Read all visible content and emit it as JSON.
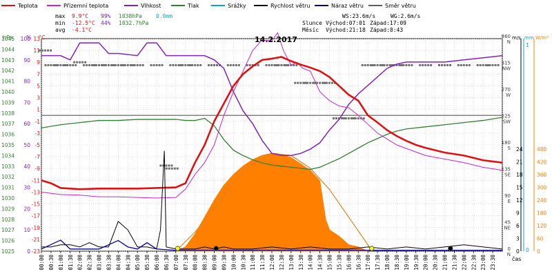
{
  "chart_data": {
    "type": "line",
    "title": "14.2.2017",
    "xlabel": "čas",
    "legend": [
      {
        "name": "Teplota",
        "color": "#e01010"
      },
      {
        "name": "Přízemní teplota",
        "color": "#d020d0"
      },
      {
        "name": "Vlhkost",
        "color": "#8020c0"
      },
      {
        "name": "Tlak",
        "color": "#308030"
      },
      {
        "name": "Srážky",
        "color": "#10a0d0"
      },
      {
        "name": "Rychlost větru",
        "color": "#000000"
      },
      {
        "name": "Náraz větru",
        "color": "#000080"
      },
      {
        "name": "Směr větru",
        "color": "#606060"
      }
    ],
    "stats": {
      "max_label": "max",
      "max_temp": "9.9°C",
      "max_hum": "99%",
      "max_press": "1038hPa",
      "rain": "0.0mm",
      "min_label": "min",
      "min_temp": "-12.5°C",
      "min_hum": "44%",
      "min_press": "1032.7hPa",
      "avg_label": "avg",
      "avg_temp": "-4.1°C",
      "ws": "WS:23.6m/s",
      "wg": "WG:2.6m/s",
      "sun": "Slunce",
      "sun_rise": "Východ:07:01",
      "sun_set": "Západ:17:09",
      "moon": "Měsíc",
      "moon_rise": "Východ:21:18",
      "moon_set": "Západ:8:43"
    },
    "axes": {
      "hpa_title": "hPa",
      "pct_title": "%",
      "temp_title": "°C",
      "hpa_ticks": [
        "1025",
        "1026",
        "1027",
        "1028",
        "1029",
        "1030",
        "1031",
        "1032",
        "1033",
        "1034",
        "1035",
        "1036",
        "1037",
        "1038",
        "1039",
        "1040",
        "1041",
        "1042",
        "1043",
        "1044",
        "1045"
      ],
      "pct_ticks": [
        "0",
        "10",
        "20",
        "30",
        "40",
        "50",
        "60",
        "70",
        "80",
        "90",
        "100"
      ],
      "temp_ticks": [
        "-23",
        "-21",
        "-19",
        "-17",
        "-15",
        "-13",
        "-11",
        "-9",
        "-7",
        "-5",
        "-3",
        "-1",
        "1",
        "3",
        "5",
        "7",
        "9",
        "11",
        "13"
      ],
      "dir_title": "°",
      "dir_ticks": [
        {
          "v": "0",
          "l": "N"
        },
        {
          "v": "45",
          "l": "NE"
        },
        {
          "v": "90",
          "l": "E"
        },
        {
          "v": "135",
          "l": "SE"
        },
        {
          "v": "180",
          "l": "S"
        },
        {
          "v": "225",
          "l": "SW"
        },
        {
          "v": "270",
          "l": "W"
        },
        {
          "v": "315",
          "l": "NW"
        },
        {
          "v": "360",
          "l": "N"
        }
      ],
      "ms_title": "m/s",
      "ms_ticks": [
        "0",
        "3",
        "6",
        "9",
        "12",
        "15",
        "18",
        "21",
        "24"
      ],
      "mm_title": "mm",
      "mm_ticks": [
        "0",
        "1"
      ],
      "wm_title": "W/m²",
      "wm_ticks": [
        "0",
        "60",
        "120",
        "180",
        "240",
        "300",
        "360",
        "420",
        "480"
      ]
    },
    "x_ticks": [
      "00:00",
      "00:30",
      "01:00",
      "01:30",
      "02:00",
      "02:30",
      "03:00",
      "03:30",
      "04:00",
      "04:30",
      "05:00",
      "05:30",
      "06:00",
      "06:30",
      "07:00",
      "07:30",
      "08:00",
      "08:30",
      "09:00",
      "09:30",
      "10:00",
      "10:30",
      "11:00",
      "11:30",
      "12:00",
      "12:30",
      "13:00",
      "13:30",
      "14:00",
      "14:30",
      "15:00",
      "15:30",
      "16:00",
      "16:30",
      "17:00",
      "17:30",
      "18:00",
      "18:30",
      "19:00",
      "19:30",
      "20:00",
      "20:30",
      "21:00",
      "21:30",
      "22:00",
      "22:30",
      "23:00",
      "23:30"
    ],
    "temperature": [
      [
        0,
        -11
      ],
      [
        0.5,
        -11.5
      ],
      [
        1,
        -12.3
      ],
      [
        2,
        -12.5
      ],
      [
        3,
        -12.4
      ],
      [
        4,
        -12.4
      ],
      [
        5,
        -12.4
      ],
      [
        6,
        -12.3
      ],
      [
        7,
        -12.2
      ],
      [
        7.5,
        -11.5
      ],
      [
        8,
        -8
      ],
      [
        8.5,
        -5
      ],
      [
        9,
        -1
      ],
      [
        9.5,
        2
      ],
      [
        10,
        5
      ],
      [
        10.5,
        7
      ],
      [
        11,
        8.3
      ],
      [
        11.5,
        9.4
      ],
      [
        12,
        9.6
      ],
      [
        12.5,
        9.9
      ],
      [
        13,
        9.2
      ],
      [
        13.5,
        8.6
      ],
      [
        14,
        8.1
      ],
      [
        14.5,
        7.5
      ],
      [
        15,
        6.5
      ],
      [
        15.5,
        5
      ],
      [
        16,
        3.5
      ],
      [
        16.5,
        2.5
      ],
      [
        17,
        0
      ],
      [
        17.5,
        -1.2
      ],
      [
        18,
        -2.5
      ],
      [
        18.5,
        -3.5
      ],
      [
        19,
        -4.3
      ],
      [
        19.5,
        -5
      ],
      [
        20,
        -5.5
      ],
      [
        21,
        -6.3
      ],
      [
        22,
        -6.8
      ],
      [
        23,
        -7.6
      ],
      [
        24,
        -8
      ]
    ],
    "ground_temperature": [
      [
        0,
        -13
      ],
      [
        1,
        -13.4
      ],
      [
        2,
        -13.5
      ],
      [
        3,
        -13.8
      ],
      [
        4,
        -13.8
      ],
      [
        5,
        -13.9
      ],
      [
        6,
        -14
      ],
      [
        7,
        -13.9
      ],
      [
        7.5,
        -12.5
      ],
      [
        8,
        -10
      ],
      [
        8.5,
        -8
      ],
      [
        9,
        -5
      ],
      [
        9.5,
        0
      ],
      [
        10,
        4
      ],
      [
        10.5,
        7.5
      ],
      [
        11,
        11
      ],
      [
        11.5,
        12.8
      ],
      [
        12,
        12.6
      ],
      [
        12.3,
        14
      ],
      [
        12.6,
        11
      ],
      [
        13,
        8.5
      ],
      [
        13.3,
        9
      ],
      [
        13.6,
        8
      ],
      [
        14,
        7.5
      ],
      [
        14.5,
        4
      ],
      [
        15,
        2.5
      ],
      [
        15.5,
        1.6
      ],
      [
        16,
        1.3
      ],
      [
        16.5,
        0
      ],
      [
        17,
        -1.5
      ],
      [
        17.5,
        -3
      ],
      [
        18,
        -4
      ],
      [
        18.5,
        -5
      ],
      [
        19,
        -5.6
      ],
      [
        19.5,
        -6.2
      ],
      [
        20,
        -6.8
      ],
      [
        21,
        -7.4
      ],
      [
        22,
        -8
      ],
      [
        23,
        -8.8
      ],
      [
        24,
        -9.3
      ]
    ],
    "humidity": [
      [
        0,
        92
      ],
      [
        0.5,
        92
      ],
      [
        1,
        92
      ],
      [
        1.5,
        90
      ],
      [
        2,
        98
      ],
      [
        3,
        98
      ],
      [
        3.5,
        93
      ],
      [
        4,
        93
      ],
      [
        5,
        92
      ],
      [
        5.5,
        98
      ],
      [
        6,
        98
      ],
      [
        6.5,
        92
      ],
      [
        7,
        92
      ],
      [
        8,
        92
      ],
      [
        8.5,
        92
      ],
      [
        9,
        90
      ],
      [
        9.5,
        86
      ],
      [
        10,
        75
      ],
      [
        10.5,
        66
      ],
      [
        11,
        60
      ],
      [
        11.5,
        52
      ],
      [
        12,
        46
      ],
      [
        12.5,
        45
      ],
      [
        13,
        45
      ],
      [
        13.5,
        46
      ],
      [
        14,
        48
      ],
      [
        14.5,
        51
      ],
      [
        15,
        57
      ],
      [
        15.5,
        62
      ],
      [
        16,
        69
      ],
      [
        16.5,
        74
      ],
      [
        17,
        78
      ],
      [
        17.5,
        82
      ],
      [
        18,
        86
      ],
      [
        18.5,
        88
      ],
      [
        19,
        89
      ],
      [
        20,
        89
      ],
      [
        21,
        89
      ],
      [
        22,
        90
      ],
      [
        23,
        91
      ],
      [
        24,
        92
      ]
    ],
    "pressure": [
      [
        0,
        1036.6
      ],
      [
        1,
        1036.9
      ],
      [
        2,
        1037.1
      ],
      [
        3,
        1037.3
      ],
      [
        4,
        1037.3
      ],
      [
        5,
        1037.4
      ],
      [
        6,
        1037.4
      ],
      [
        7,
        1037.4
      ],
      [
        7.5,
        1037.3
      ],
      [
        8,
        1037.3
      ],
      [
        8.5,
        1037.5
      ],
      [
        9,
        1036.8
      ],
      [
        9.5,
        1035.5
      ],
      [
        10,
        1034.5
      ],
      [
        10.5,
        1034
      ],
      [
        11,
        1033.6
      ],
      [
        11.5,
        1033.3
      ],
      [
        12,
        1033.1
      ],
      [
        12.5,
        1033
      ],
      [
        13,
        1032.9
      ],
      [
        13.5,
        1032.8
      ],
      [
        14,
        1032.7
      ],
      [
        14.5,
        1032.9
      ],
      [
        15,
        1033.3
      ],
      [
        15.5,
        1033.7
      ],
      [
        16,
        1034.2
      ],
      [
        16.5,
        1034.7
      ],
      [
        17,
        1035.2
      ],
      [
        17.5,
        1035.6
      ],
      [
        18,
        1036
      ],
      [
        18.5,
        1036.3
      ],
      [
        19,
        1036.5
      ],
      [
        20,
        1036.7
      ],
      [
        21,
        1036.9
      ],
      [
        22,
        1037.1
      ],
      [
        23,
        1037.3
      ],
      [
        24,
        1037.6
      ]
    ],
    "wind_direction": [
      [
        0.2,
        340
      ],
      [
        0.5,
        315
      ],
      [
        1,
        315
      ],
      [
        1.5,
        315
      ],
      [
        2,
        320
      ],
      [
        2.5,
        315
      ],
      [
        3,
        315
      ],
      [
        3.5,
        315
      ],
      [
        4,
        315
      ],
      [
        4.5,
        315
      ],
      [
        5,
        315
      ],
      [
        6,
        315
      ],
      [
        6.5,
        145
      ],
      [
        6.8,
        140
      ],
      [
        7,
        315
      ],
      [
        7.5,
        315
      ],
      [
        8,
        315
      ],
      [
        9,
        315
      ],
      [
        10,
        315
      ],
      [
        11,
        315
      ],
      [
        12,
        315
      ],
      [
        12.5,
        315
      ],
      [
        13,
        315
      ],
      [
        13.5,
        285
      ],
      [
        14,
        285
      ],
      [
        14.5,
        285
      ],
      [
        15,
        285
      ],
      [
        15.5,
        225
      ],
      [
        16,
        225
      ],
      [
        16.5,
        225
      ],
      [
        17,
        315
      ],
      [
        17.5,
        315
      ],
      [
        18,
        315
      ],
      [
        18.5,
        315
      ],
      [
        19,
        315
      ],
      [
        20,
        315
      ],
      [
        21,
        315
      ],
      [
        22,
        315
      ],
      [
        23,
        315
      ],
      [
        23.5,
        315
      ]
    ],
    "wind_speed": [
      [
        0,
        1
      ],
      [
        0.5,
        1
      ],
      [
        1,
        1.5
      ],
      [
        1.5,
        1.5
      ],
      [
        2,
        1
      ],
      [
        2.5,
        2
      ],
      [
        3,
        1
      ],
      [
        3.5,
        1
      ],
      [
        4,
        7
      ],
      [
        4.5,
        5
      ],
      [
        5,
        1
      ],
      [
        5.5,
        1
      ],
      [
        6,
        0.5
      ],
      [
        6.2,
        5
      ],
      [
        6.4,
        23.6
      ],
      [
        6.5,
        1
      ],
      [
        7,
        0.5
      ],
      [
        8,
        0.5
      ],
      [
        8.5,
        1
      ],
      [
        9,
        0.5
      ],
      [
        9.5,
        1
      ],
      [
        10,
        0.5
      ],
      [
        11,
        0.5
      ],
      [
        12,
        1
      ],
      [
        13,
        0.5
      ],
      [
        14,
        1
      ],
      [
        15,
        0.5
      ],
      [
        16,
        0.5
      ],
      [
        17,
        1
      ],
      [
        18,
        0.5
      ],
      [
        19,
        1
      ],
      [
        20,
        0.5
      ],
      [
        21,
        1
      ],
      [
        22,
        1.5
      ],
      [
        23,
        1
      ],
      [
        24,
        0.5
      ]
    ],
    "wind_gust": [
      [
        0,
        0.5
      ],
      [
        1,
        2.6
      ],
      [
        1.5,
        0.5
      ],
      [
        2,
        0.5
      ],
      [
        3,
        0.5
      ],
      [
        4,
        2.5
      ],
      [
        4.5,
        1
      ],
      [
        5,
        0.5
      ],
      [
        5.5,
        2
      ],
      [
        6,
        0.5
      ],
      [
        7,
        0.2
      ],
      [
        8,
        0.2
      ],
      [
        9,
        0.2
      ],
      [
        10,
        0.2
      ],
      [
        11,
        0.2
      ],
      [
        12,
        0.2
      ],
      [
        13,
        0.2
      ],
      [
        14,
        0.2
      ],
      [
        15,
        0.2
      ],
      [
        16,
        0.2
      ],
      [
        17,
        0.2
      ],
      [
        18,
        0.2
      ],
      [
        19,
        0.2
      ],
      [
        20,
        0.2
      ],
      [
        21,
        0.2
      ],
      [
        22,
        0.2
      ],
      [
        23,
        0.2
      ],
      [
        24,
        0.2
      ]
    ],
    "solar_radiation": [
      [
        7,
        0
      ],
      [
        7.5,
        20
      ],
      [
        8,
        80
      ],
      [
        8.5,
        160
      ],
      [
        9,
        240
      ],
      [
        9.5,
        310
      ],
      [
        10,
        360
      ],
      [
        10.5,
        400
      ],
      [
        11,
        430
      ],
      [
        11.5,
        450
      ],
      [
        12,
        460
      ],
      [
        12.5,
        455
      ],
      [
        13,
        440
      ],
      [
        13.5,
        410
      ],
      [
        14,
        380
      ],
      [
        14.5,
        330
      ],
      [
        14.8,
        150
      ],
      [
        15,
        100
      ],
      [
        15.5,
        70
      ],
      [
        16,
        30
      ],
      [
        16.5,
        20
      ],
      [
        17,
        0
      ]
    ],
    "solar_max": [
      [
        7,
        0
      ],
      [
        8,
        90
      ],
      [
        9,
        200
      ],
      [
        10,
        320
      ],
      [
        11,
        410
      ],
      [
        12,
        460
      ],
      [
        13,
        450
      ],
      [
        14,
        390
      ],
      [
        15,
        290
      ],
      [
        16,
        160
      ],
      [
        17,
        30
      ],
      [
        17.2,
        0
      ]
    ],
    "markers": [
      {
        "x": 7.1,
        "v": 0,
        "color": "#ffff00"
      },
      {
        "x": 9.1,
        "v": 0,
        "color": "#000000"
      },
      {
        "x": 17.2,
        "v": 0,
        "color": "#ffff00"
      },
      {
        "x": 21.3,
        "v": 0,
        "color": "#000000"
      }
    ]
  }
}
